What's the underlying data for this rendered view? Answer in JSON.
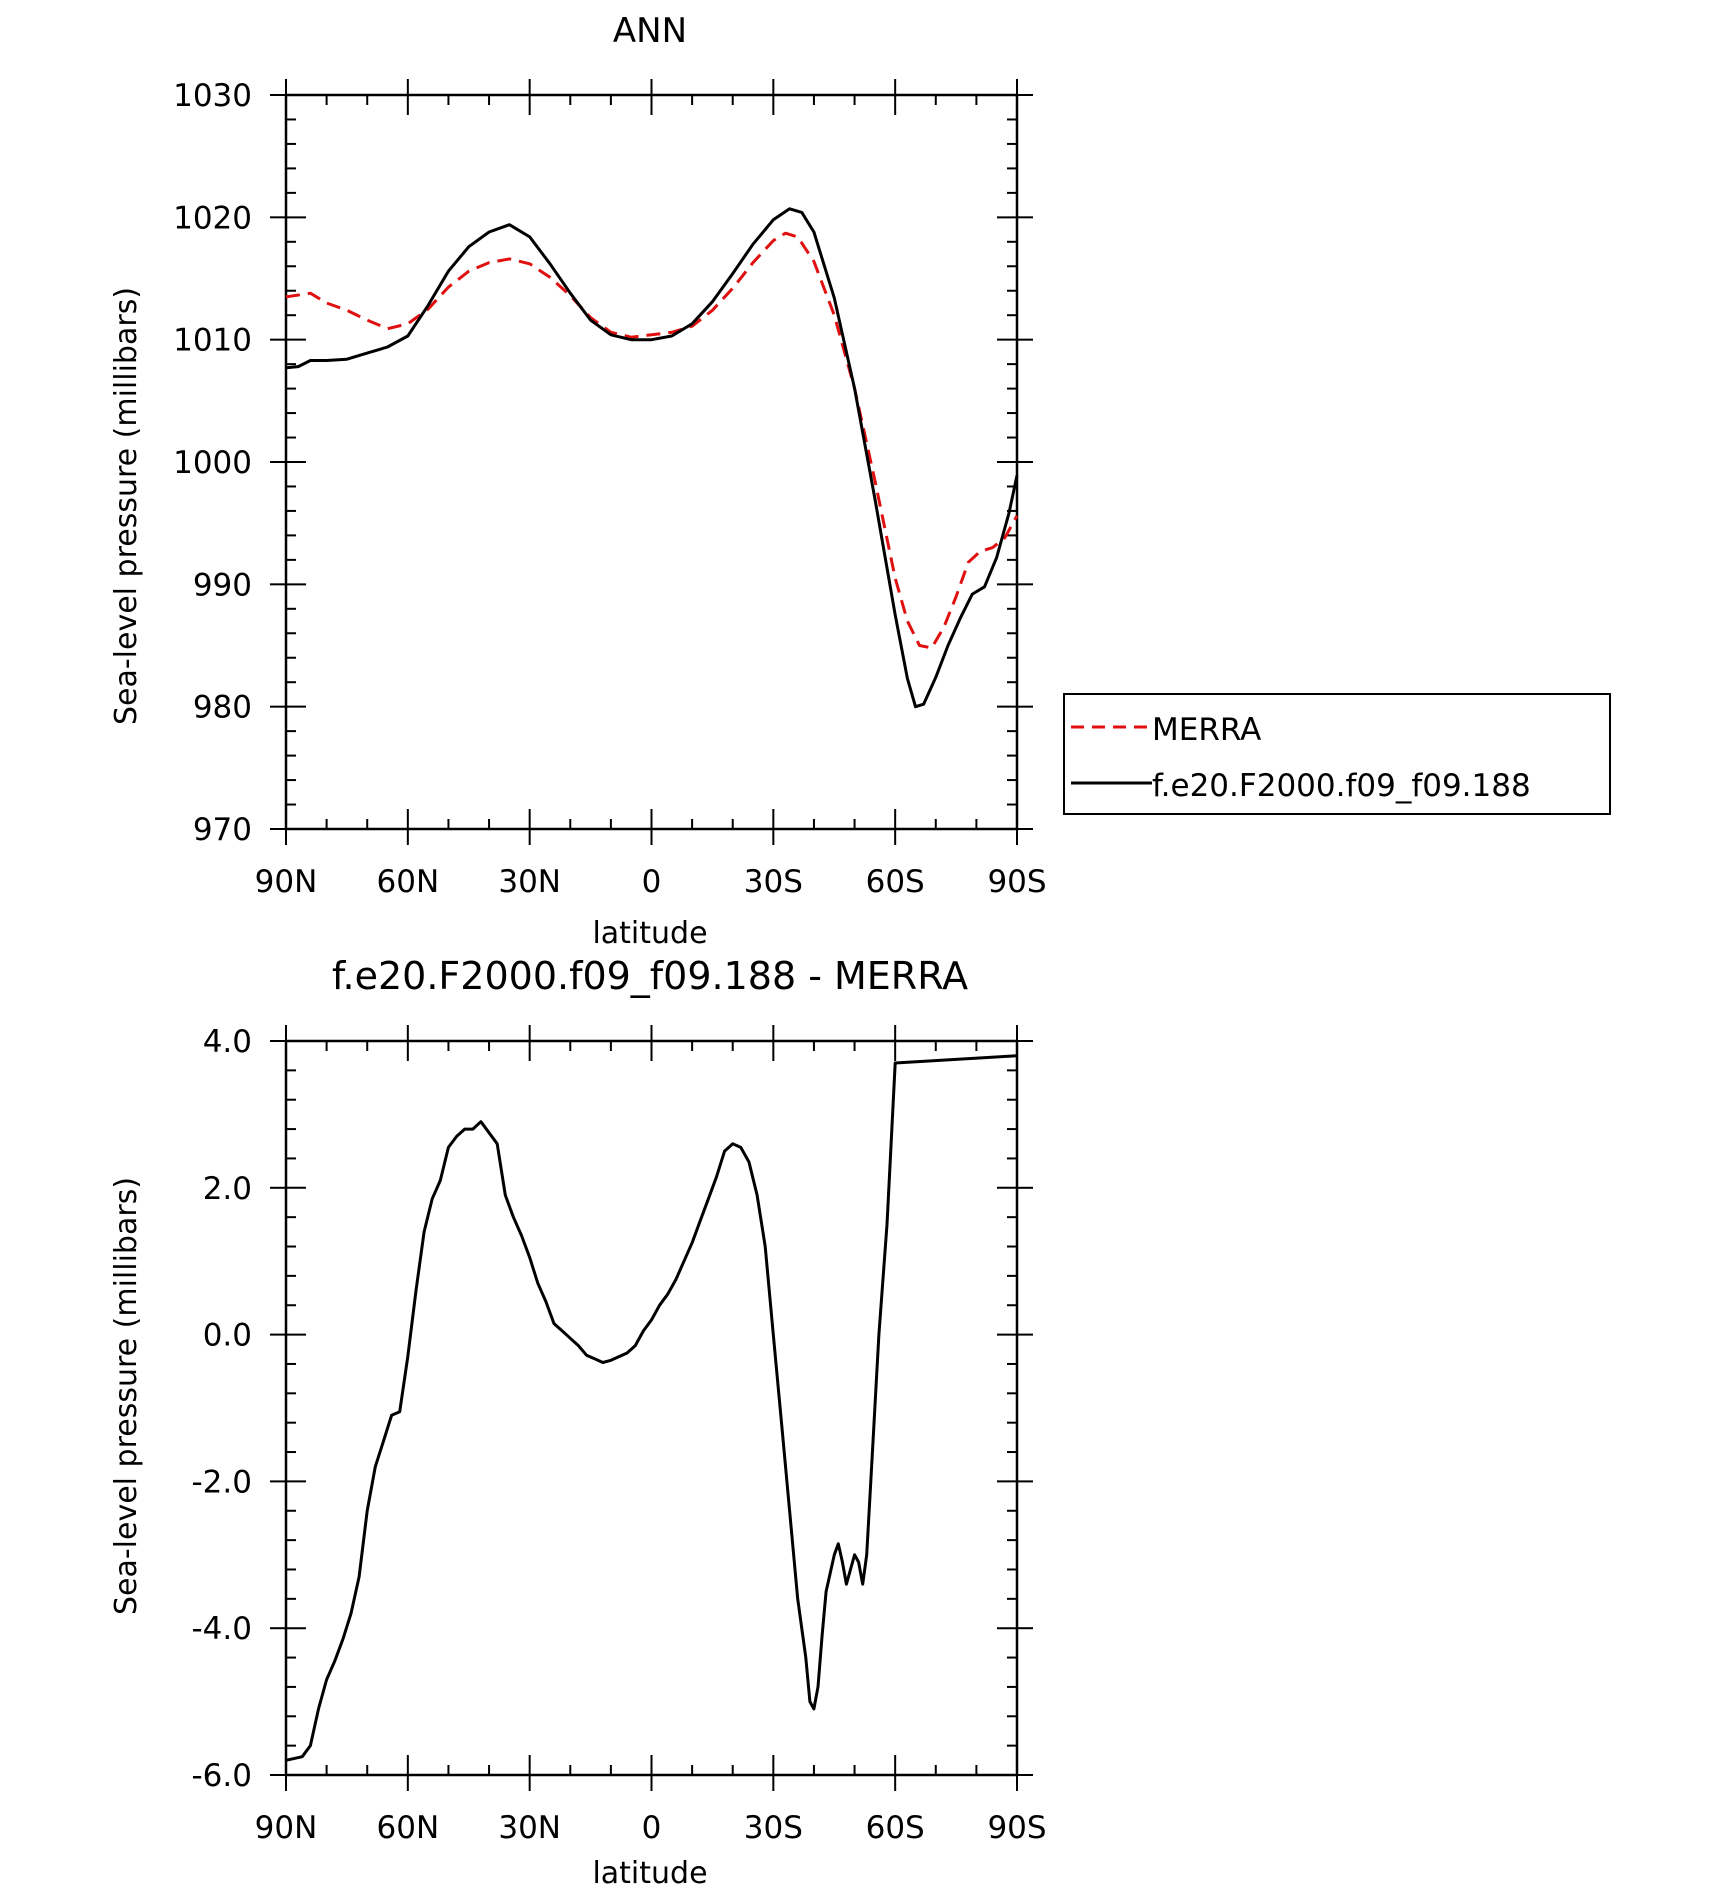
{
  "chart_data": [
    {
      "type": "line",
      "title": "ANN",
      "xlabel": "latitude",
      "ylabel": "Sea-level pressure (millibars)",
      "xlim": [
        90,
        -90
      ],
      "ylim": [
        970,
        1030
      ],
      "x_ticks": [
        {
          "value": 90,
          "label": "90N"
        },
        {
          "value": 60,
          "label": "60N"
        },
        {
          "value": 30,
          "label": "30N"
        },
        {
          "value": 0,
          "label": "0"
        },
        {
          "value": -30,
          "label": "30S"
        },
        {
          "value": -60,
          "label": "60S"
        },
        {
          "value": -90,
          "label": "90S"
        }
      ],
      "y_ticks": [
        {
          "value": 1030,
          "label": "1030"
        },
        {
          "value": 1020,
          "label": "1020"
        },
        {
          "value": 1010,
          "label": "1010"
        },
        {
          "value": 1000,
          "label": "1000"
        },
        {
          "value": 990,
          "label": "990"
        },
        {
          "value": 980,
          "label": "980"
        },
        {
          "value": 970,
          "label": "970"
        }
      ],
      "grid": false,
      "legend_position": "right",
      "series": [
        {
          "name": "MERRA",
          "color": "#e01010",
          "dash": "dashed",
          "points": [
            [
              90,
              1013.5
            ],
            [
              84,
              1013.8
            ],
            [
              80,
              1013.0
            ],
            [
              75,
              1012.4
            ],
            [
              70,
              1011.6
            ],
            [
              65,
              1010.9
            ],
            [
              60,
              1011.3
            ],
            [
              55,
              1012.5
            ],
            [
              50,
              1014.3
            ],
            [
              45,
              1015.6
            ],
            [
              40,
              1016.3
            ],
            [
              35,
              1016.6
            ],
            [
              30,
              1016.2
            ],
            [
              25,
              1015.1
            ],
            [
              20,
              1013.6
            ],
            [
              15,
              1011.8
            ],
            [
              10,
              1010.6
            ],
            [
              5,
              1010.2
            ],
            [
              0,
              1010.4
            ],
            [
              -5,
              1010.6
            ],
            [
              -10,
              1011.1
            ],
            [
              -15,
              1012.4
            ],
            [
              -20,
              1014.2
            ],
            [
              -25,
              1016.3
            ],
            [
              -30,
              1018.1
            ],
            [
              -33,
              1018.7
            ],
            [
              -36,
              1018.4
            ],
            [
              -40,
              1016.4
            ],
            [
              -45,
              1012.0
            ],
            [
              -50,
              1006.0
            ],
            [
              -55,
              998.5
            ],
            [
              -60,
              990.5
            ],
            [
              -63,
              987.0
            ],
            [
              -66,
              985.0
            ],
            [
              -69,
              984.8
            ],
            [
              -72,
              986.5
            ],
            [
              -75,
              989.0
            ],
            [
              -78,
              991.8
            ],
            [
              -81,
              992.7
            ],
            [
              -84,
              993.0
            ],
            [
              -87,
              993.8
            ],
            [
              -90,
              995.6
            ]
          ]
        },
        {
          "name": "f.e20.F2000.f09_f09.188",
          "color": "#000000",
          "dash": "solid",
          "points": [
            [
              90,
              1007.7
            ],
            [
              87,
              1007.8
            ],
            [
              84,
              1008.3
            ],
            [
              80,
              1008.3
            ],
            [
              75,
              1008.4
            ],
            [
              70,
              1008.9
            ],
            [
              65,
              1009.4
            ],
            [
              60,
              1010.3
            ],
            [
              55,
              1012.8
            ],
            [
              50,
              1015.6
            ],
            [
              45,
              1017.6
            ],
            [
              40,
              1018.8
            ],
            [
              35,
              1019.4
            ],
            [
              30,
              1018.4
            ],
            [
              25,
              1016.2
            ],
            [
              20,
              1013.8
            ],
            [
              15,
              1011.6
            ],
            [
              10,
              1010.4
            ],
            [
              5,
              1010.0
            ],
            [
              0,
              1010.0
            ],
            [
              -5,
              1010.3
            ],
            [
              -10,
              1011.3
            ],
            [
              -15,
              1013.1
            ],
            [
              -20,
              1015.4
            ],
            [
              -25,
              1017.8
            ],
            [
              -30,
              1019.8
            ],
            [
              -34,
              1020.7
            ],
            [
              -37,
              1020.4
            ],
            [
              -40,
              1018.8
            ],
            [
              -45,
              1013.4
            ],
            [
              -50,
              1006.0
            ],
            [
              -55,
              997.0
            ],
            [
              -60,
              987.5
            ],
            [
              -63,
              982.3
            ],
            [
              -65,
              980.0
            ],
            [
              -67,
              980.2
            ],
            [
              -70,
              982.4
            ],
            [
              -73,
              985.0
            ],
            [
              -76,
              987.2
            ],
            [
              -79,
              989.2
            ],
            [
              -82,
              989.8
            ],
            [
              -85,
              992.2
            ],
            [
              -88,
              995.8
            ],
            [
              -90,
              998.9
            ]
          ]
        }
      ]
    },
    {
      "type": "line",
      "title": "f.e20.F2000.f09_f09.188 - MERRA",
      "xlabel": "latitude",
      "ylabel": "Sea-level pressure (millibars)",
      "xlim": [
        90,
        -90
      ],
      "ylim": [
        -6.0,
        4.0
      ],
      "x_ticks": [
        {
          "value": 90,
          "label": "90N"
        },
        {
          "value": 60,
          "label": "60N"
        },
        {
          "value": 30,
          "label": "30N"
        },
        {
          "value": 0,
          "label": "0"
        },
        {
          "value": -30,
          "label": "30S"
        },
        {
          "value": -60,
          "label": "60S"
        },
        {
          "value": -90,
          "label": "90S"
        }
      ],
      "y_ticks": [
        {
          "value": 4.0,
          "label": "4.0"
        },
        {
          "value": 2.0,
          "label": "2.0"
        },
        {
          "value": 0.0,
          "label": "0.0"
        },
        {
          "value": -2.0,
          "label": "-2.0"
        },
        {
          "value": -4.0,
          "label": "-4.0"
        },
        {
          "value": -6.0,
          "label": "-6.0"
        }
      ],
      "grid": false,
      "series": [
        {
          "name": "",
          "color": "#000000",
          "dash": "solid",
          "points": [
            [
              90,
              -5.8
            ],
            [
              86,
              -5.75
            ],
            [
              84,
              -5.6
            ],
            [
              82,
              -5.1
            ],
            [
              80,
              -4.7
            ],
            [
              78,
              -4.45
            ],
            [
              76,
              -4.15
            ],
            [
              74,
              -3.8
            ],
            [
              72,
              -3.3
            ],
            [
              70,
              -2.4
            ],
            [
              68,
              -1.8
            ],
            [
              66,
              -1.45
            ],
            [
              64,
              -1.1
            ],
            [
              62,
              -1.05
            ],
            [
              60,
              -0.3
            ],
            [
              58,
              0.6
            ],
            [
              56,
              1.4
            ],
            [
              54,
              1.85
            ],
            [
              52,
              2.1
            ],
            [
              50,
              2.55
            ],
            [
              48,
              2.7
            ],
            [
              46,
              2.8
            ],
            [
              44,
              2.8
            ],
            [
              42,
              2.9
            ],
            [
              40,
              2.75
            ],
            [
              38,
              2.6
            ],
            [
              36,
              1.9
            ],
            [
              34,
              1.6
            ],
            [
              32,
              1.35
            ],
            [
              30,
              1.05
            ],
            [
              28,
              0.7
            ],
            [
              26,
              0.45
            ],
            [
              24,
              0.15
            ],
            [
              22,
              0.05
            ],
            [
              20,
              -0.05
            ],
            [
              18,
              -0.15
            ],
            [
              16,
              -0.28
            ],
            [
              14,
              -0.33
            ],
            [
              12,
              -0.38
            ],
            [
              10,
              -0.35
            ],
            [
              8,
              -0.3
            ],
            [
              6,
              -0.25
            ],
            [
              4,
              -0.15
            ],
            [
              2,
              0.05
            ],
            [
              0,
              0.2
            ],
            [
              -2,
              0.4
            ],
            [
              -4,
              0.55
            ],
            [
              -6,
              0.75
            ],
            [
              -8,
              1.0
            ],
            [
              -10,
              1.25
            ],
            [
              -12,
              1.55
            ],
            [
              -14,
              1.85
            ],
            [
              -16,
              2.15
            ],
            [
              -18,
              2.5
            ],
            [
              -20,
              2.6
            ],
            [
              -22,
              2.55
            ],
            [
              -24,
              2.35
            ],
            [
              -26,
              1.9
            ],
            [
              -28,
              1.2
            ],
            [
              -30,
              0.0
            ],
            [
              -32,
              -1.2
            ],
            [
              -34,
              -2.4
            ],
            [
              -36,
              -3.6
            ],
            [
              -38,
              -4.4
            ],
            [
              -39,
              -5.0
            ],
            [
              -40,
              -5.1
            ],
            [
              -41,
              -4.8
            ],
            [
              -42,
              -4.1
            ],
            [
              -43,
              -3.5
            ],
            [
              -45,
              -3.0
            ],
            [
              -46,
              -2.85
            ],
            [
              -47,
              -3.1
            ],
            [
              -48,
              -3.4
            ],
            [
              -49,
              -3.2
            ],
            [
              -50,
              -3.0
            ],
            [
              -51,
              -3.1
            ],
            [
              -52,
              -3.4
            ],
            [
              -53,
              -3.0
            ],
            [
              -54,
              -2.0
            ],
            [
              -56,
              0.0
            ],
            [
              -58,
              1.5
            ],
            [
              -59,
              2.6
            ],
            [
              -60,
              3.7
            ],
            [
              -90,
              3.8
            ]
          ]
        }
      ]
    }
  ],
  "legend": {
    "items": [
      {
        "label": "MERRA",
        "color": "#e01010",
        "dash": "dashed"
      },
      {
        "label": "f.e20.F2000.f09_f09.188",
        "color": "#000000",
        "dash": "solid"
      }
    ]
  }
}
